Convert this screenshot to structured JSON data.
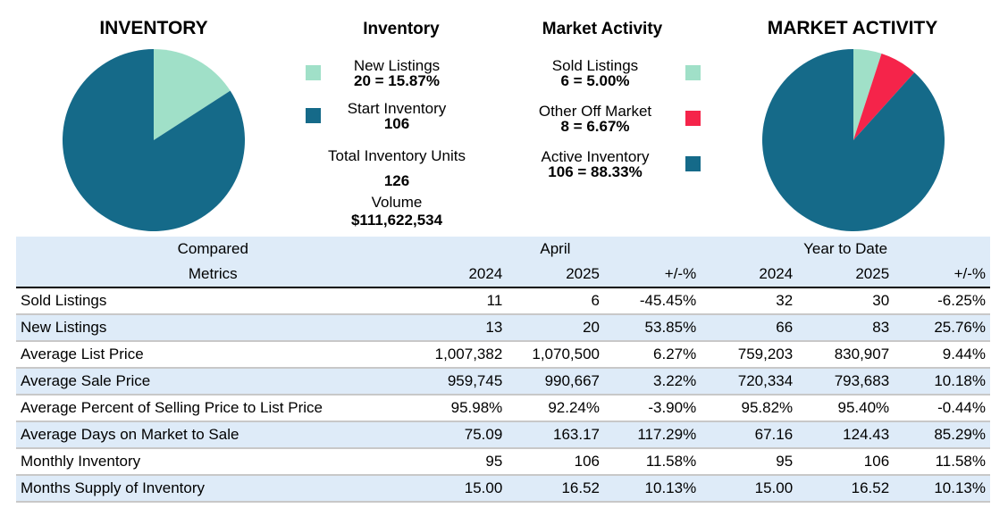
{
  "inventory": {
    "title": "INVENTORY",
    "legend_title": "Inventory",
    "slices": [
      {
        "name": "New Listings",
        "value": 20,
        "value_label": "20 = 15.87%",
        "color": "#a0e0c8"
      },
      {
        "name": "Start Inventory",
        "value": 106,
        "value_label": "106",
        "color": "#156a89"
      }
    ],
    "total_label": "Total Inventory Units",
    "total": "126",
    "volume_label": "Volume",
    "volume": "$111,622,534"
  },
  "market_activity": {
    "title": "MARKET ACTIVITY",
    "legend_title": "Market Activity",
    "slices": [
      {
        "name": "Sold Listings",
        "value": 6,
        "value_label": "6 = 5.00%",
        "color": "#a0e0c8"
      },
      {
        "name": "Other Off Market",
        "value": 8,
        "value_label": "8 = 6.67%",
        "color": "#f5244a"
      },
      {
        "name": "Active Inventory",
        "value": 106,
        "value_label": "106 = 88.33%",
        "color": "#156a89"
      }
    ]
  },
  "table": {
    "group_headers": [
      "Compared",
      "April",
      "Year to Date"
    ],
    "columns": [
      "Metrics",
      "2024",
      "2025",
      "+/-%",
      "2024",
      "2025",
      "+/-%"
    ],
    "rows": [
      [
        "Sold Listings",
        "11",
        "6",
        "-45.45%",
        "32",
        "30",
        "-6.25%"
      ],
      [
        "New Listings",
        "13",
        "20",
        "53.85%",
        "66",
        "83",
        "25.76%"
      ],
      [
        "Average List Price",
        "1,007,382",
        "1,070,500",
        "6.27%",
        "759,203",
        "830,907",
        "9.44%"
      ],
      [
        "Average Sale Price",
        "959,745",
        "990,667",
        "3.22%",
        "720,334",
        "793,683",
        "10.18%"
      ],
      [
        "Average Percent of Selling Price to List Price",
        "95.98%",
        "92.24%",
        "-3.90%",
        "95.82%",
        "95.40%",
        "-0.44%"
      ],
      [
        "Average Days on Market to Sale",
        "75.09",
        "163.17",
        "117.29%",
        "67.16",
        "124.43",
        "85.29%"
      ],
      [
        "Monthly Inventory",
        "95",
        "106",
        "11.58%",
        "95",
        "106",
        "11.58%"
      ],
      [
        "Months Supply of Inventory",
        "15.00",
        "16.52",
        "10.13%",
        "15.00",
        "16.52",
        "10.13%"
      ]
    ]
  }
}
